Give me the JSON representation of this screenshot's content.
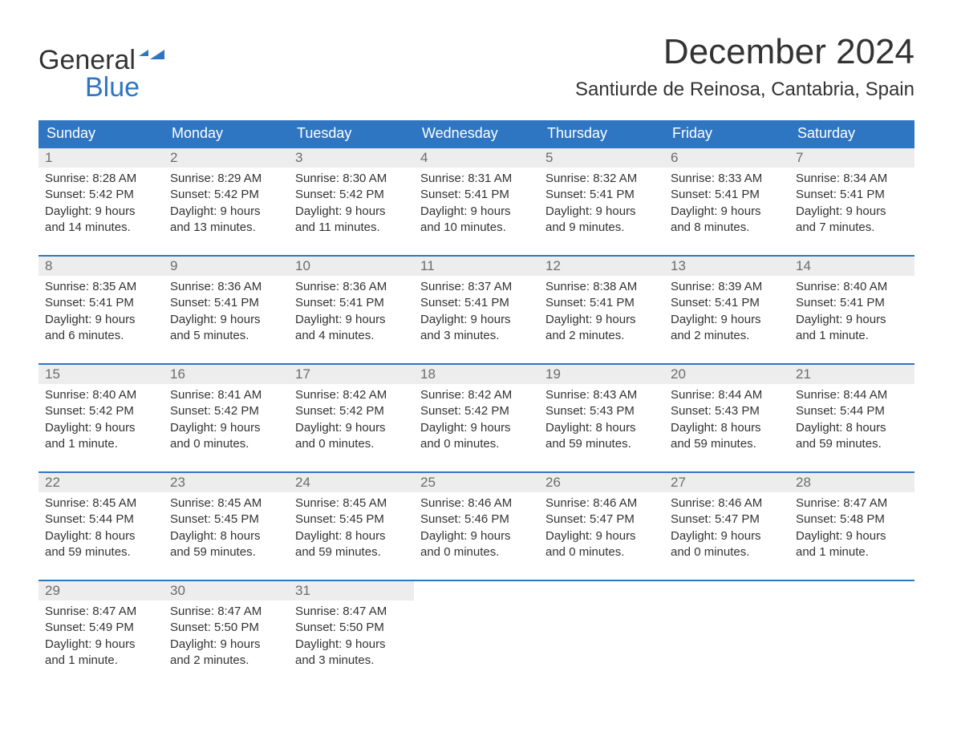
{
  "logo": {
    "text_general": "General",
    "text_blue": "Blue",
    "flag_color": "#2f76c2"
  },
  "title": {
    "month": "December 2024",
    "location": "Santiurde de Reinosa, Cantabria, Spain"
  },
  "colors": {
    "header_bg": "#2f76c2",
    "header_text": "#ffffff",
    "daynum_bg": "#ededed",
    "daynum_text": "#6c6c6c",
    "body_text": "#333333",
    "week_border": "#2f76c2",
    "page_bg": "#ffffff"
  },
  "weekdays": [
    "Sunday",
    "Monday",
    "Tuesday",
    "Wednesday",
    "Thursday",
    "Friday",
    "Saturday"
  ],
  "weeks": [
    [
      {
        "day": "1",
        "sunrise": "Sunrise: 8:28 AM",
        "sunset": "Sunset: 5:42 PM",
        "daylight1": "Daylight: 9 hours",
        "daylight2": "and 14 minutes."
      },
      {
        "day": "2",
        "sunrise": "Sunrise: 8:29 AM",
        "sunset": "Sunset: 5:42 PM",
        "daylight1": "Daylight: 9 hours",
        "daylight2": "and 13 minutes."
      },
      {
        "day": "3",
        "sunrise": "Sunrise: 8:30 AM",
        "sunset": "Sunset: 5:42 PM",
        "daylight1": "Daylight: 9 hours",
        "daylight2": "and 11 minutes."
      },
      {
        "day": "4",
        "sunrise": "Sunrise: 8:31 AM",
        "sunset": "Sunset: 5:41 PM",
        "daylight1": "Daylight: 9 hours",
        "daylight2": "and 10 minutes."
      },
      {
        "day": "5",
        "sunrise": "Sunrise: 8:32 AM",
        "sunset": "Sunset: 5:41 PM",
        "daylight1": "Daylight: 9 hours",
        "daylight2": "and 9 minutes."
      },
      {
        "day": "6",
        "sunrise": "Sunrise: 8:33 AM",
        "sunset": "Sunset: 5:41 PM",
        "daylight1": "Daylight: 9 hours",
        "daylight2": "and 8 minutes."
      },
      {
        "day": "7",
        "sunrise": "Sunrise: 8:34 AM",
        "sunset": "Sunset: 5:41 PM",
        "daylight1": "Daylight: 9 hours",
        "daylight2": "and 7 minutes."
      }
    ],
    [
      {
        "day": "8",
        "sunrise": "Sunrise: 8:35 AM",
        "sunset": "Sunset: 5:41 PM",
        "daylight1": "Daylight: 9 hours",
        "daylight2": "and 6 minutes."
      },
      {
        "day": "9",
        "sunrise": "Sunrise: 8:36 AM",
        "sunset": "Sunset: 5:41 PM",
        "daylight1": "Daylight: 9 hours",
        "daylight2": "and 5 minutes."
      },
      {
        "day": "10",
        "sunrise": "Sunrise: 8:36 AM",
        "sunset": "Sunset: 5:41 PM",
        "daylight1": "Daylight: 9 hours",
        "daylight2": "and 4 minutes."
      },
      {
        "day": "11",
        "sunrise": "Sunrise: 8:37 AM",
        "sunset": "Sunset: 5:41 PM",
        "daylight1": "Daylight: 9 hours",
        "daylight2": "and 3 minutes."
      },
      {
        "day": "12",
        "sunrise": "Sunrise: 8:38 AM",
        "sunset": "Sunset: 5:41 PM",
        "daylight1": "Daylight: 9 hours",
        "daylight2": "and 2 minutes."
      },
      {
        "day": "13",
        "sunrise": "Sunrise: 8:39 AM",
        "sunset": "Sunset: 5:41 PM",
        "daylight1": "Daylight: 9 hours",
        "daylight2": "and 2 minutes."
      },
      {
        "day": "14",
        "sunrise": "Sunrise: 8:40 AM",
        "sunset": "Sunset: 5:41 PM",
        "daylight1": "Daylight: 9 hours",
        "daylight2": "and 1 minute."
      }
    ],
    [
      {
        "day": "15",
        "sunrise": "Sunrise: 8:40 AM",
        "sunset": "Sunset: 5:42 PM",
        "daylight1": "Daylight: 9 hours",
        "daylight2": "and 1 minute."
      },
      {
        "day": "16",
        "sunrise": "Sunrise: 8:41 AM",
        "sunset": "Sunset: 5:42 PM",
        "daylight1": "Daylight: 9 hours",
        "daylight2": "and 0 minutes."
      },
      {
        "day": "17",
        "sunrise": "Sunrise: 8:42 AM",
        "sunset": "Sunset: 5:42 PM",
        "daylight1": "Daylight: 9 hours",
        "daylight2": "and 0 minutes."
      },
      {
        "day": "18",
        "sunrise": "Sunrise: 8:42 AM",
        "sunset": "Sunset: 5:42 PM",
        "daylight1": "Daylight: 9 hours",
        "daylight2": "and 0 minutes."
      },
      {
        "day": "19",
        "sunrise": "Sunrise: 8:43 AM",
        "sunset": "Sunset: 5:43 PM",
        "daylight1": "Daylight: 8 hours",
        "daylight2": "and 59 minutes."
      },
      {
        "day": "20",
        "sunrise": "Sunrise: 8:44 AM",
        "sunset": "Sunset: 5:43 PM",
        "daylight1": "Daylight: 8 hours",
        "daylight2": "and 59 minutes."
      },
      {
        "day": "21",
        "sunrise": "Sunrise: 8:44 AM",
        "sunset": "Sunset: 5:44 PM",
        "daylight1": "Daylight: 8 hours",
        "daylight2": "and 59 minutes."
      }
    ],
    [
      {
        "day": "22",
        "sunrise": "Sunrise: 8:45 AM",
        "sunset": "Sunset: 5:44 PM",
        "daylight1": "Daylight: 8 hours",
        "daylight2": "and 59 minutes."
      },
      {
        "day": "23",
        "sunrise": "Sunrise: 8:45 AM",
        "sunset": "Sunset: 5:45 PM",
        "daylight1": "Daylight: 8 hours",
        "daylight2": "and 59 minutes."
      },
      {
        "day": "24",
        "sunrise": "Sunrise: 8:45 AM",
        "sunset": "Sunset: 5:45 PM",
        "daylight1": "Daylight: 8 hours",
        "daylight2": "and 59 minutes."
      },
      {
        "day": "25",
        "sunrise": "Sunrise: 8:46 AM",
        "sunset": "Sunset: 5:46 PM",
        "daylight1": "Daylight: 9 hours",
        "daylight2": "and 0 minutes."
      },
      {
        "day": "26",
        "sunrise": "Sunrise: 8:46 AM",
        "sunset": "Sunset: 5:47 PM",
        "daylight1": "Daylight: 9 hours",
        "daylight2": "and 0 minutes."
      },
      {
        "day": "27",
        "sunrise": "Sunrise: 8:46 AM",
        "sunset": "Sunset: 5:47 PM",
        "daylight1": "Daylight: 9 hours",
        "daylight2": "and 0 minutes."
      },
      {
        "day": "28",
        "sunrise": "Sunrise: 8:47 AM",
        "sunset": "Sunset: 5:48 PM",
        "daylight1": "Daylight: 9 hours",
        "daylight2": "and 1 minute."
      }
    ],
    [
      {
        "day": "29",
        "sunrise": "Sunrise: 8:47 AM",
        "sunset": "Sunset: 5:49 PM",
        "daylight1": "Daylight: 9 hours",
        "daylight2": "and 1 minute."
      },
      {
        "day": "30",
        "sunrise": "Sunrise: 8:47 AM",
        "sunset": "Sunset: 5:50 PM",
        "daylight1": "Daylight: 9 hours",
        "daylight2": "and 2 minutes."
      },
      {
        "day": "31",
        "sunrise": "Sunrise: 8:47 AM",
        "sunset": "Sunset: 5:50 PM",
        "daylight1": "Daylight: 9 hours",
        "daylight2": "and 3 minutes."
      },
      {
        "day": "",
        "sunrise": "",
        "sunset": "",
        "daylight1": "",
        "daylight2": ""
      },
      {
        "day": "",
        "sunrise": "",
        "sunset": "",
        "daylight1": "",
        "daylight2": ""
      },
      {
        "day": "",
        "sunrise": "",
        "sunset": "",
        "daylight1": "",
        "daylight2": ""
      },
      {
        "day": "",
        "sunrise": "",
        "sunset": "",
        "daylight1": "",
        "daylight2": ""
      }
    ]
  ]
}
